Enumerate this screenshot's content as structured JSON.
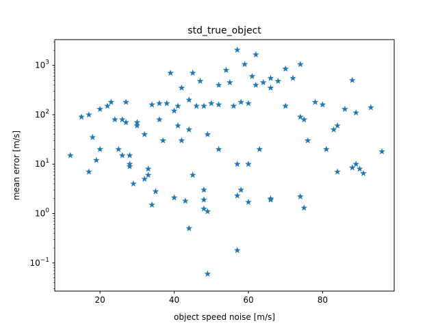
{
  "chart_data": {
    "type": "scatter",
    "title": "std_true_object",
    "xlabel": "object speed noise [m/s]",
    "ylabel": "mean error [m/s]",
    "xlim": [
      7.8,
      99.3
    ],
    "ylim": [
      0.0269,
      3320
    ],
    "yscale": "log",
    "marker": "star",
    "grid": false,
    "legend": "none",
    "colors": {
      "marker": "#1f77b4",
      "axes": "#000000",
      "background": "#ffffff"
    },
    "x_ticks": [
      {
        "value": 20,
        "label": "20"
      },
      {
        "value": 40,
        "label": "40"
      },
      {
        "value": 60,
        "label": "60"
      },
      {
        "value": 80,
        "label": "80"
      }
    ],
    "y_ticks": [
      {
        "value": 0.1,
        "label": "10",
        "exp": "−1"
      },
      {
        "value": 1,
        "label": "10",
        "exp": "0"
      },
      {
        "value": 10,
        "label": "10",
        "exp": "1"
      },
      {
        "value": 100,
        "label": "10",
        "exp": "2"
      },
      {
        "value": 1000,
        "label": "10",
        "exp": "3"
      }
    ],
    "series": [
      {
        "x": [
          57,
          62,
          54,
          59,
          74,
          61,
          70,
          45,
          66,
          64,
          47,
          55,
          72,
          68,
          52,
          62,
          39,
          42,
          78,
          66,
          23,
          46,
          80,
          36,
          34,
          50,
          44,
          48,
          60,
          52,
          58,
          56,
          22,
          70,
          41,
          20,
          27,
          38,
          86,
          89,
          74,
          75,
          41,
          32,
          93,
          40,
          83,
          44,
          84,
          30,
          36,
          26,
          24,
          30,
          27,
          49,
          52,
          42,
          63,
          76,
          81,
          60,
          20,
          15,
          17,
          25,
          28,
          37,
          18,
          19,
          57,
          88,
          28,
          96,
          90,
          26,
          89,
          33,
          29,
          45,
          58,
          48,
          35,
          40,
          66,
          12,
          17,
          32,
          91,
          84,
          33,
          28,
          88,
          57,
          74,
          43,
          34,
          48,
          66,
          60,
          75,
          57,
          49,
          44,
          49,
          48
        ],
        "y": [
          2050,
          1650,
          800,
          1050,
          1050,
          600,
          850,
          700,
          550,
          450,
          480,
          450,
          550,
          480,
          400,
          400,
          700,
          350,
          180,
          350,
          180,
          150,
          160,
          170,
          160,
          170,
          200,
          150,
          170,
          160,
          180,
          150,
          150,
          150,
          150,
          130,
          180,
          170,
          130,
          110,
          90,
          80,
          60,
          40,
          140,
          120,
          50,
          50,
          60,
          60,
          80,
          80,
          80,
          70,
          70,
          40,
          20,
          30,
          20,
          30,
          20,
          10,
          20,
          90,
          100,
          20,
          10,
          30,
          35,
          12,
          10,
          8.5,
          15,
          18,
          8,
          15,
          10,
          6,
          4,
          6,
          3,
          3,
          2.8,
          2.1,
          2,
          15,
          7,
          5,
          6.5,
          7,
          8,
          9,
          500,
          2.3,
          2.2,
          1.8,
          1.5,
          1.9,
          1.9,
          1.7,
          1.3,
          0.18,
          1.1,
          0.5,
          0.06,
          1.25
        ]
      }
    ]
  }
}
